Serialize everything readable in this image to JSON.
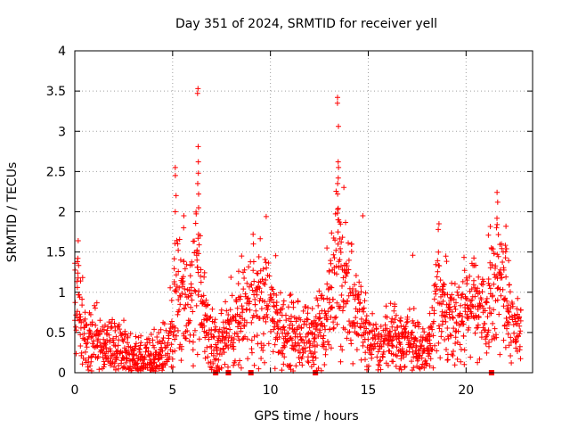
{
  "chart_data": {
    "type": "scatter",
    "title": "Day 351 of 2024, SRMTID for receiver yell",
    "xlabel": "GPS time / hours",
    "ylabel": "SRMTID / TECUs",
    "xlim": [
      0,
      23.4
    ],
    "ylim": [
      0,
      4
    ],
    "x_ticks": [
      0,
      5,
      10,
      15,
      20
    ],
    "x_tick_labels": [
      "0",
      "5",
      "10",
      "15",
      "20"
    ],
    "y_ticks": [
      0,
      0.5,
      1,
      1.5,
      2,
      2.5,
      3,
      3.5,
      4
    ],
    "y_tick_labels": [
      "0",
      "0.5",
      "1",
      "1.5",
      "2",
      "2.5",
      "3",
      "3.5",
      "4"
    ],
    "grid": true,
    "marker": "plus",
    "color": "#ff0000",
    "profile_x": [
      0,
      0.2,
      0.5,
      1.0,
      1.5,
      2.0,
      2.5,
      3.0,
      3.5,
      4.0,
      4.5,
      4.8,
      5.0,
      5.2,
      5.5,
      5.8,
      6.0,
      6.3,
      6.6,
      6.9,
      7.2,
      7.6,
      8.0,
      8.5,
      9.0,
      9.5,
      10.0,
      10.5,
      11.0,
      11.5,
      12.0,
      12.5,
      13.0,
      13.3,
      13.6,
      14.0,
      14.4,
      14.8,
      15.2,
      15.6,
      16.0,
      16.5,
      17.0,
      17.5,
      18.0,
      18.3,
      18.6,
      19.0,
      19.4,
      19.8,
      20.2,
      20.6,
      21.0,
      21.4,
      21.8,
      22.2,
      22.6,
      22.8
    ],
    "profile_y": [
      0.65,
      0.9,
      0.6,
      0.45,
      0.35,
      0.28,
      0.25,
      0.18,
      0.15,
      0.2,
      0.25,
      0.35,
      0.6,
      1.1,
      0.9,
      0.75,
      0.9,
      1.2,
      0.8,
      0.45,
      0.3,
      0.45,
      0.6,
      0.7,
      0.85,
      0.95,
      0.8,
      0.55,
      0.5,
      0.5,
      0.45,
      0.5,
      0.8,
      1.2,
      1.3,
      0.9,
      0.75,
      0.55,
      0.4,
      0.38,
      0.4,
      0.45,
      0.38,
      0.32,
      0.25,
      0.5,
      0.95,
      0.6,
      0.55,
      0.7,
      0.95,
      0.8,
      0.7,
      0.95,
      1.2,
      0.75,
      0.55,
      0.5
    ],
    "peaks": [
      {
        "x": 0.15,
        "ys": [
          1.64,
          1.42,
          1.38
        ]
      },
      {
        "x": 5.15,
        "ys": [
          2.55,
          2.45,
          2.2,
          2.0
        ]
      },
      {
        "x": 5.55,
        "ys": [
          1.95,
          1.8
        ]
      },
      {
        "x": 6.3,
        "ys": [
          3.53,
          3.47,
          2.81,
          2.62,
          2.48,
          2.35,
          2.22,
          2.05,
          1.72,
          1.67
        ]
      },
      {
        "x": 9.8,
        "ys": [
          1.94
        ]
      },
      {
        "x": 13.45,
        "ys": [
          3.42,
          3.35,
          3.06,
          2.62,
          2.55,
          2.42,
          2.35,
          2.22,
          1.9,
          1.75
        ]
      },
      {
        "x": 14.75,
        "ys": [
          1.95
        ]
      },
      {
        "x": 18.6,
        "ys": [
          1.85,
          1.78
        ]
      },
      {
        "x": 21.6,
        "ys": [
          2.24,
          2.12,
          1.92,
          1.84
        ]
      },
      {
        "x": 22.05,
        "ys": [
          1.82
        ]
      },
      {
        "x": 9.1,
        "ys": [
          1.72,
          1.6
        ]
      },
      {
        "x": 12.9,
        "ys": [
          1.55
        ]
      },
      {
        "x": 17.3,
        "ys": [
          1.46
        ]
      }
    ],
    "zero_markers_x": [
      7.2,
      7.85,
      9.0,
      12.3,
      21.3
    ]
  }
}
